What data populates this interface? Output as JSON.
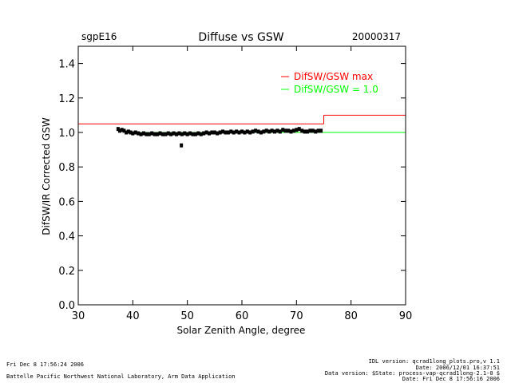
{
  "header": {
    "site": "sgpE16",
    "title": "Diffuse vs GSW",
    "date": "20000317"
  },
  "axes": {
    "xlabel": "Solar Zenith Angle, degree",
    "ylabel": "DifSW/IR Corrected GSW"
  },
  "legend": {
    "items": [
      {
        "label": "DifSW/GSW max",
        "color": "#ff0000"
      },
      {
        "label": "DifSW/GSW = 1.0",
        "color": "#00ff00"
      }
    ]
  },
  "footer": {
    "left_line1": "Fri Dec  8 17:56:24 2006",
    "left_line2": "Battelle Pacific Northwest National Laboratory, Arm Data Application",
    "right_line1": "IDL version: qcrad1long_plots.pro,v 1.1",
    "right_line2": "Date: 2006/12/01 16:37:51",
    "right_line3": "Data version: $State: process-vap-qcrad1long-2.1-0 $",
    "right_line4": "Date: Fri Dec  8 17:56:16 2006"
  },
  "chart_data": {
    "type": "scatter",
    "title": "Diffuse vs GSW",
    "xlabel": "Solar Zenith Angle, degree",
    "ylabel": "DifSW/IR Corrected GSW",
    "xlim": [
      30,
      90
    ],
    "ylim": [
      0.0,
      1.5
    ],
    "xticks": [
      30,
      40,
      50,
      60,
      70,
      80,
      90
    ],
    "yticks": [
      0.0,
      0.2,
      0.4,
      0.6,
      0.8,
      1.0,
      1.2,
      1.4
    ],
    "ytick_labels": [
      "0.0",
      "0.2",
      "0.4",
      "0.6",
      "0.8",
      "1.0",
      "1.2",
      "1.4"
    ],
    "reference_lines": [
      {
        "name": "DifSW/GSW max",
        "color": "#ff0000",
        "segments": [
          {
            "x": [
              30,
              75
            ],
            "y": 1.05
          },
          {
            "x": [
              75,
              90
            ],
            "y": 1.1
          }
        ]
      },
      {
        "name": "DifSW/GSW = 1.0",
        "color": "#00ff00",
        "segments": [
          {
            "x": [
              40,
              90
            ],
            "y": 1.0
          }
        ]
      }
    ],
    "series": [
      {
        "color": "#000000",
        "points": [
          [
            37.3,
            1.02
          ],
          [
            37.6,
            1.01
          ],
          [
            38.0,
            1.015
          ],
          [
            38.4,
            1.01
          ],
          [
            38.8,
            1.0
          ],
          [
            39.2,
            1.005
          ],
          [
            39.6,
            1.0
          ],
          [
            40.0,
            0.995
          ],
          [
            40.5,
            1.0
          ],
          [
            41.0,
            0.995
          ],
          [
            41.5,
            0.99
          ],
          [
            42.0,
            0.995
          ],
          [
            42.5,
            0.99
          ],
          [
            43.0,
            0.99
          ],
          [
            43.5,
            0.995
          ],
          [
            44.0,
            0.99
          ],
          [
            44.5,
            0.99
          ],
          [
            45.0,
            0.995
          ],
          [
            45.5,
            0.99
          ],
          [
            46.0,
            0.99
          ],
          [
            46.5,
            0.995
          ],
          [
            47.0,
            0.99
          ],
          [
            47.5,
            0.995
          ],
          [
            48.0,
            0.99
          ],
          [
            48.5,
            0.995
          ],
          [
            49.0,
            0.99
          ],
          [
            49.5,
            0.995
          ],
          [
            50.0,
            0.99
          ],
          [
            50.5,
            0.995
          ],
          [
            51.0,
            0.99
          ],
          [
            51.5,
            0.99
          ],
          [
            52.0,
            0.995
          ],
          [
            52.5,
            0.99
          ],
          [
            53.0,
            0.995
          ],
          [
            53.5,
            1.0
          ],
          [
            54.0,
            0.995
          ],
          [
            54.5,
            1.0
          ],
          [
            55.0,
            1.0
          ],
          [
            55.5,
            0.995
          ],
          [
            56.0,
            1.0
          ],
          [
            56.5,
            1.005
          ],
          [
            57.0,
            1.0
          ],
          [
            57.5,
            1.0
          ],
          [
            58.0,
            1.005
          ],
          [
            58.5,
            1.0
          ],
          [
            59.0,
            1.005
          ],
          [
            59.5,
            1.0
          ],
          [
            60.0,
            1.005
          ],
          [
            60.5,
            1.0
          ],
          [
            61.0,
            1.005
          ],
          [
            61.5,
            1.0
          ],
          [
            62.0,
            1.005
          ],
          [
            62.5,
            1.01
          ],
          [
            63.0,
            1.005
          ],
          [
            63.5,
            1.0
          ],
          [
            64.0,
            1.005
          ],
          [
            64.5,
            1.01
          ],
          [
            65.0,
            1.005
          ],
          [
            65.5,
            1.01
          ],
          [
            66.0,
            1.005
          ],
          [
            66.5,
            1.01
          ],
          [
            67.0,
            1.005
          ],
          [
            67.5,
            1.015
          ],
          [
            68.0,
            1.01
          ],
          [
            68.5,
            1.01
          ],
          [
            69.0,
            1.005
          ],
          [
            69.5,
            1.01
          ],
          [
            70.0,
            1.015
          ],
          [
            70.5,
            1.02
          ],
          [
            71.0,
            1.01
          ],
          [
            71.5,
            1.005
          ],
          [
            72.0,
            1.005
          ],
          [
            72.5,
            1.01
          ],
          [
            73.0,
            1.01
          ],
          [
            73.5,
            1.005
          ],
          [
            74.0,
            1.01
          ],
          [
            74.5,
            1.01
          ],
          [
            48.9,
            0.925
          ]
        ]
      }
    ],
    "grid": false,
    "legend_position": "top-right"
  }
}
